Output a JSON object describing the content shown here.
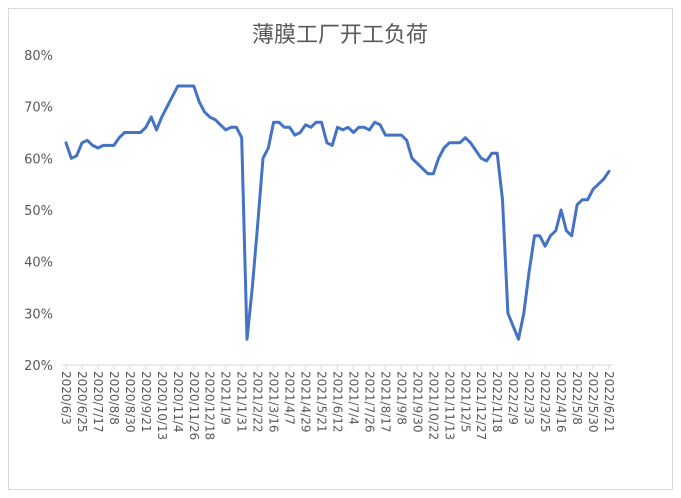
{
  "chart_data": {
    "type": "line",
    "title": "薄膜工厂开工负荷",
    "categories": [
      "2020/6/3",
      null,
      null,
      "2020/6/25",
      null,
      null,
      "2020/7/17",
      null,
      null,
      "2020/8/8",
      null,
      null,
      "2020/8/30",
      null,
      null,
      "2020/9/21",
      null,
      null,
      "2020/10/13",
      null,
      null,
      "2020/11/4",
      null,
      null,
      "2020/11/26",
      null,
      null,
      "2020/12/18",
      null,
      null,
      "2021/1/9",
      null,
      null,
      "2021/1/31",
      null,
      null,
      "2021/2/22",
      null,
      null,
      "2021/3/16",
      null,
      null,
      "2021/4/7",
      null,
      null,
      "2021/4/29",
      null,
      null,
      "2021/5/21",
      null,
      null,
      "2021/6/12",
      null,
      null,
      "2021/7/4",
      null,
      null,
      "2021/7/26",
      null,
      null,
      "2021/8/17",
      null,
      null,
      "2021/9/8",
      null,
      null,
      "2021/9/30",
      null,
      null,
      "2021/10/22",
      null,
      null,
      "2021/11/13",
      null,
      null,
      "2021/12/5",
      null,
      null,
      "2021/12/27",
      null,
      null,
      "2022/1/18",
      null,
      null,
      "2022/2/9",
      null,
      null,
      "2022/3/3",
      null,
      null,
      "2022/3/25",
      null,
      null,
      "2022/4/16",
      null,
      null,
      "2022/5/8",
      null,
      null,
      "2022/5/30",
      null,
      null,
      "2022/6/21"
    ],
    "values": [
      63,
      60,
      60.5,
      63,
      63.5,
      62.5,
      62,
      62.5,
      62.5,
      62.5,
      64,
      65,
      65,
      65,
      65,
      66,
      68,
      65.5,
      68,
      70,
      72,
      74,
      74,
      74,
      74,
      71,
      69,
      68,
      67.5,
      66.5,
      65.5,
      66,
      66,
      64,
      25,
      35,
      47,
      60,
      62,
      67,
      67,
      66,
      66,
      64.5,
      65,
      66.5,
      66,
      67,
      67,
      63,
      62.5,
      66,
      65.5,
      66,
      65,
      66,
      66,
      65.5,
      67,
      66.5,
      64.5,
      64.5,
      64.5,
      64.5,
      63.5,
      60,
      59,
      58,
      57,
      57,
      60,
      62,
      63,
      63,
      63,
      64,
      63,
      61.5,
      60,
      59.5,
      61,
      61,
      52,
      30,
      27.5,
      25,
      30,
      38,
      45,
      45,
      43,
      45,
      46,
      50,
      46,
      45,
      51,
      52,
      52,
      54,
      55,
      56,
      57.5
    ],
    "color": "#4472c4",
    "ylim": [
      20,
      80
    ],
    "yticks": [
      {
        "value": 20,
        "label": "20%"
      },
      {
        "value": 30,
        "label": "30%"
      },
      {
        "value": 40,
        "label": "40%"
      },
      {
        "value": 50,
        "label": "50%"
      },
      {
        "value": 60,
        "label": "60%"
      },
      {
        "value": 70,
        "label": "70%"
      },
      {
        "value": 80,
        "label": "80%"
      }
    ],
    "grid": false
  }
}
